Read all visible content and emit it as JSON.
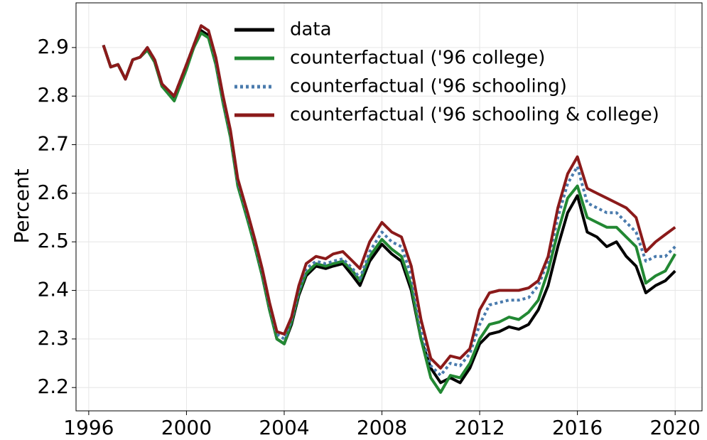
{
  "chart_data": {
    "type": "line",
    "ylabel": "Percent",
    "x": [
      1996.6,
      1996.9,
      1997.2,
      1997.5,
      1997.8,
      1998.1,
      1998.4,
      1998.7,
      1999.0,
      1999.5,
      2000.0,
      2000.3,
      2000.6,
      2000.9,
      2001.2,
      2001.5,
      2001.8,
      2002.1,
      2002.5,
      2002.8,
      2003.1,
      2003.4,
      2003.7,
      2004.0,
      2004.3,
      2004.6,
      2004.9,
      2005.3,
      2005.7,
      2006.0,
      2006.4,
      2006.8,
      2007.1,
      2007.5,
      2008.0,
      2008.4,
      2008.8,
      2009.2,
      2009.6,
      2010.0,
      2010.4,
      2010.8,
      2011.2,
      2011.6,
      2012.0,
      2012.4,
      2012.8,
      2013.2,
      2013.6,
      2014.0,
      2014.4,
      2014.8,
      2015.2,
      2015.6,
      2016.0,
      2016.4,
      2016.8,
      2017.2,
      2017.6,
      2018.0,
      2018.4,
      2018.8,
      2019.2,
      2019.6,
      2020.0
    ],
    "series": [
      {
        "name": "data",
        "color": "#000000",
        "linestyle": "solid",
        "values": [
          2.905,
          2.86,
          2.865,
          2.835,
          2.875,
          2.88,
          2.895,
          2.87,
          2.82,
          2.795,
          2.86,
          2.9,
          2.935,
          2.925,
          2.87,
          2.79,
          2.72,
          2.62,
          2.55,
          2.49,
          2.43,
          2.36,
          2.3,
          2.29,
          2.33,
          2.39,
          2.43,
          2.45,
          2.445,
          2.45,
          2.455,
          2.43,
          2.41,
          2.46,
          2.495,
          2.475,
          2.46,
          2.4,
          2.3,
          2.24,
          2.21,
          2.22,
          2.21,
          2.24,
          2.29,
          2.31,
          2.315,
          2.325,
          2.32,
          2.33,
          2.36,
          2.41,
          2.49,
          2.56,
          2.595,
          2.52,
          2.51,
          2.49,
          2.5,
          2.47,
          2.45,
          2.395,
          2.41,
          2.42,
          2.44
        ]
      },
      {
        "name": "counterfactual ('96 college)",
        "color": "#228833",
        "linestyle": "solid",
        "values": [
          2.905,
          2.86,
          2.865,
          2.835,
          2.875,
          2.88,
          2.895,
          2.87,
          2.82,
          2.79,
          2.855,
          2.9,
          2.93,
          2.92,
          2.865,
          2.785,
          2.715,
          2.615,
          2.545,
          2.49,
          2.43,
          2.36,
          2.3,
          2.29,
          2.335,
          2.395,
          2.435,
          2.455,
          2.45,
          2.455,
          2.46,
          2.44,
          2.42,
          2.47,
          2.505,
          2.485,
          2.47,
          2.41,
          2.3,
          2.22,
          2.19,
          2.225,
          2.22,
          2.25,
          2.3,
          2.33,
          2.335,
          2.345,
          2.34,
          2.355,
          2.38,
          2.44,
          2.52,
          2.59,
          2.615,
          2.55,
          2.54,
          2.53,
          2.53,
          2.51,
          2.49,
          2.415,
          2.43,
          2.44,
          2.475
        ]
      },
      {
        "name": "counterfactual ('96 schooling)",
        "color": "#4a7bad",
        "linestyle": "dotted",
        "values": [
          2.905,
          2.86,
          2.865,
          2.835,
          2.875,
          2.88,
          2.9,
          2.875,
          2.825,
          2.8,
          2.865,
          2.905,
          2.945,
          2.935,
          2.875,
          2.795,
          2.725,
          2.625,
          2.555,
          2.5,
          2.44,
          2.37,
          2.31,
          2.3,
          2.34,
          2.4,
          2.445,
          2.46,
          2.455,
          2.46,
          2.465,
          2.445,
          2.425,
          2.48,
          2.52,
          2.5,
          2.49,
          2.43,
          2.32,
          2.245,
          2.225,
          2.25,
          2.245,
          2.27,
          2.33,
          2.37,
          2.375,
          2.38,
          2.38,
          2.385,
          2.41,
          2.46,
          2.55,
          2.62,
          2.655,
          2.58,
          2.57,
          2.56,
          2.56,
          2.54,
          2.52,
          2.46,
          2.47,
          2.47,
          2.49
        ]
      },
      {
        "name": "counterfactual ('96 schooling & college)",
        "color": "#8b1a1a",
        "linestyle": "solid",
        "values": [
          2.905,
          2.86,
          2.865,
          2.835,
          2.875,
          2.88,
          2.9,
          2.875,
          2.825,
          2.8,
          2.865,
          2.905,
          2.945,
          2.935,
          2.88,
          2.8,
          2.73,
          2.63,
          2.56,
          2.505,
          2.445,
          2.375,
          2.315,
          2.31,
          2.345,
          2.41,
          2.455,
          2.47,
          2.465,
          2.475,
          2.48,
          2.46,
          2.445,
          2.5,
          2.54,
          2.52,
          2.51,
          2.45,
          2.34,
          2.26,
          2.24,
          2.265,
          2.26,
          2.28,
          2.36,
          2.395,
          2.4,
          2.4,
          2.4,
          2.405,
          2.42,
          2.47,
          2.57,
          2.64,
          2.675,
          2.61,
          2.6,
          2.59,
          2.58,
          2.57,
          2.55,
          2.48,
          2.5,
          2.515,
          2.53
        ]
      }
    ],
    "xlim": [
      1995.48,
      2021.1
    ],
    "xticks": [
      1996,
      2000,
      2004,
      2008,
      2012,
      2016,
      2020
    ],
    "ylim": [
      2.152,
      2.992
    ],
    "yticks": [
      2.2,
      2.3,
      2.4,
      2.5,
      2.6,
      2.7,
      2.8,
      2.9
    ],
    "grid": true,
    "legend": "upper center"
  }
}
